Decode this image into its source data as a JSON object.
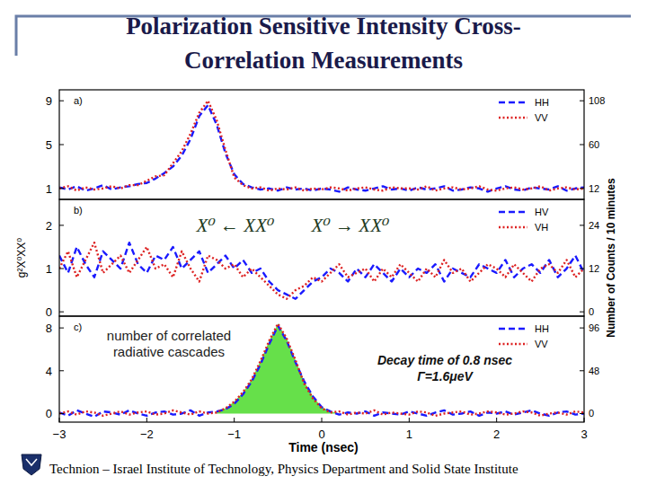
{
  "title_lines": [
    "Polarization Sensitive Intensity Cross-",
    "Correlation Measurements"
  ],
  "footer": "Technion – Israel Institute of Technology, Physics Department and Solid State Institute",
  "chart_data": [
    {
      "type": "line",
      "panel_label": "a)",
      "x": [
        -3,
        -2.9,
        -2.8,
        -2.7,
        -2.6,
        -2.5,
        -2.4,
        -2.3,
        -2.2,
        -2.1,
        -2,
        -1.9,
        -1.8,
        -1.7,
        -1.6,
        -1.5,
        -1.4,
        -1.3,
        -1.2,
        -1.1,
        -1,
        -0.9,
        -0.8,
        -0.7,
        -0.6,
        -0.5,
        -0.4,
        -0.3,
        -0.2,
        -0.1,
        0,
        0.1,
        0.2,
        0.3,
        0.4,
        0.5,
        0.6,
        0.7,
        0.8,
        0.9,
        1,
        1.1,
        1.2,
        1.3,
        1.4,
        1.5,
        1.6,
        1.7,
        1.8,
        1.9,
        2,
        2.1,
        2.2,
        2.3,
        2.4,
        2.5,
        2.6,
        2.7,
        2.8,
        2.9,
        3
      ],
      "xlim": [
        -3,
        3
      ],
      "ylim": [
        0,
        10
      ],
      "yticks": [
        1,
        5,
        9
      ],
      "y2lim": [
        0,
        120
      ],
      "y2ticks": [
        12,
        60,
        108
      ],
      "legend": "upper right",
      "series": [
        {
          "name": "HH",
          "color": "#1a1aff",
          "line_style": "dashed",
          "values": [
            1.1,
            0.9,
            1.2,
            0.8,
            1.0,
            1.3,
            0.9,
            1.1,
            1.2,
            1.4,
            1.5,
            1.9,
            2.4,
            3.0,
            4.0,
            5.5,
            7.6,
            8.6,
            6.8,
            4.2,
            2.3,
            1.4,
            1.1,
            0.9,
            1.0,
            0.8,
            1.1,
            0.9,
            1.0,
            0.8,
            1.0,
            0.9,
            0.7,
            1.1,
            0.9,
            0.8,
            1.0,
            1.2,
            0.9,
            1.0,
            0.8,
            1.1,
            0.9,
            1.0,
            1.2,
            0.8,
            0.9,
            1.1,
            1.0,
            0.7,
            1.0,
            1.2,
            0.9,
            0.8,
            1.1,
            1.0,
            0.9,
            1.2,
            0.8,
            1.0,
            1.1
          ]
        },
        {
          "name": "VV",
          "color": "#dd2222",
          "line_style": "dotted",
          "values": [
            1.0,
            1.2,
            0.8,
            1.1,
            0.9,
            1.0,
            1.2,
            1.0,
            1.3,
            1.3,
            1.7,
            2.1,
            2.2,
            3.3,
            4.4,
            6.0,
            7.9,
            9.0,
            7.2,
            4.5,
            2.0,
            1.3,
            1.0,
            1.1,
            0.8,
            1.0,
            0.9,
            1.1,
            0.8,
            1.0,
            0.9,
            1.1,
            1.0,
            0.8,
            1.0,
            1.1,
            0.9,
            0.8,
            1.1,
            1.0,
            1.0,
            0.9,
            1.2,
            0.8,
            1.0,
            1.1,
            0.9,
            1.0,
            1.2,
            0.9,
            0.8,
            1.0,
            1.1,
            0.9,
            1.0,
            1.2,
            0.8,
            1.0,
            1.1,
            0.9,
            1.0
          ]
        }
      ]
    },
    {
      "type": "line",
      "panel_label": "b)",
      "y_label": "g²X⁰XX⁰",
      "y2_label": "Number of Counts / 10 minutes",
      "annotations": [
        "X⁰ ← XX⁰",
        "X⁰ → XX⁰"
      ],
      "x": [
        -3,
        -2.9,
        -2.8,
        -2.7,
        -2.6,
        -2.5,
        -2.4,
        -2.3,
        -2.2,
        -2.1,
        -2,
        -1.9,
        -1.8,
        -1.7,
        -1.6,
        -1.5,
        -1.4,
        -1.3,
        -1.2,
        -1.1,
        -1,
        -0.9,
        -0.8,
        -0.7,
        -0.6,
        -0.5,
        -0.4,
        -0.3,
        -0.2,
        -0.1,
        0,
        0.1,
        0.2,
        0.3,
        0.4,
        0.5,
        0.6,
        0.7,
        0.8,
        0.9,
        1,
        1.1,
        1.2,
        1.3,
        1.4,
        1.5,
        1.6,
        1.7,
        1.8,
        1.9,
        2,
        2.1,
        2.2,
        2.3,
        2.4,
        2.5,
        2.6,
        2.7,
        2.8,
        2.9,
        3
      ],
      "xlim": [
        -3,
        3
      ],
      "ylim": [
        -0.1,
        2.6
      ],
      "yticks": [
        0,
        1,
        2
      ],
      "y2lim": [
        -1.2,
        31.2
      ],
      "y2ticks": [
        0,
        12,
        24
      ],
      "legend": "upper right",
      "series": [
        {
          "name": "HV",
          "color": "#1a1aff",
          "line_style": "dashed",
          "values": [
            1.3,
            0.9,
            1.5,
            1.1,
            0.8,
            1.4,
            1.2,
            1.0,
            1.6,
            1.1,
            0.9,
            1.3,
            1.2,
            1.5,
            1.0,
            1.2,
            1.4,
            0.9,
            1.1,
            1.3,
            1.0,
            1.2,
            0.9,
            1.0,
            0.7,
            0.5,
            0.4,
            0.3,
            0.5,
            0.7,
            0.8,
            1.0,
            0.9,
            0.7,
            1.0,
            0.8,
            1.1,
            0.9,
            0.7,
            1.0,
            0.8,
            1.0,
            0.9,
            1.1,
            0.7,
            1.0,
            0.9,
            0.8,
            1.1,
            1.0,
            0.9,
            1.2,
            0.8,
            1.0,
            1.1,
            0.9,
            1.2,
            0.8,
            1.0,
            1.3,
            0.9
          ]
        },
        {
          "name": "VH",
          "color": "#dd2222",
          "line_style": "dotted",
          "values": [
            1.0,
            1.4,
            0.8,
            1.2,
            1.6,
            0.9,
            1.1,
            1.3,
            0.9,
            1.2,
            1.5,
            1.0,
            1.1,
            0.8,
            1.4,
            1.0,
            0.7,
            1.3,
            1.2,
            1.0,
            1.1,
            0.8,
            1.0,
            0.8,
            0.6,
            0.4,
            0.3,
            0.5,
            0.6,
            0.8,
            0.7,
            0.9,
            1.1,
            0.8,
            0.9,
            1.0,
            0.7,
            1.0,
            0.8,
            1.1,
            0.9,
            0.7,
            1.0,
            0.8,
            1.2,
            0.9,
            1.0,
            0.7,
            0.9,
            1.1,
            1.0,
            0.8,
            1.1,
            0.9,
            0.7,
            1.0,
            1.1,
            0.9,
            1.2,
            0.8,
            1.0
          ]
        }
      ]
    },
    {
      "type": "line",
      "panel_label": "c)",
      "x_label": "Time (nsec)",
      "annotations": [
        "number of correlated",
        "radiative cascades",
        "Decay time of 0.8 nsec",
        "Γ=1.6μeV"
      ],
      "x": [
        -3,
        -2.9,
        -2.8,
        -2.7,
        -2.6,
        -2.5,
        -2.4,
        -2.3,
        -2.2,
        -2.1,
        -2,
        -1.9,
        -1.8,
        -1.7,
        -1.6,
        -1.5,
        -1.4,
        -1.3,
        -1.2,
        -1.1,
        -1,
        -0.9,
        -0.8,
        -0.7,
        -0.6,
        -0.5,
        -0.4,
        -0.3,
        -0.2,
        -0.1,
        0,
        0.1,
        0.2,
        0.3,
        0.4,
        0.5,
        0.6,
        0.7,
        0.8,
        0.9,
        1,
        1.1,
        1.2,
        1.3,
        1.4,
        1.5,
        1.6,
        1.7,
        1.8,
        1.9,
        2,
        2.1,
        2.2,
        2.3,
        2.4,
        2.5,
        2.6,
        2.7,
        2.8,
        2.9,
        3
      ],
      "xlim": [
        -3,
        3
      ],
      "xticks": [
        -3,
        -2,
        -1,
        0,
        1,
        2,
        3
      ],
      "ylim": [
        -0.8,
        9.1
      ],
      "yticks": [
        0,
        4,
        8
      ],
      "y2lim": [
        -9.6,
        109.2
      ],
      "y2ticks": [
        0,
        48,
        96
      ],
      "legend": "upper right",
      "series": [
        {
          "name": "HH",
          "color": "#1a1aff",
          "line_style": "dashed",
          "values": [
            0.1,
            -0.2,
            0.3,
            0.0,
            -0.3,
            0.2,
            0.1,
            -0.1,
            0.3,
            0.0,
            -0.2,
            0.1,
            0.2,
            -0.1,
            0.0,
            0.3,
            -0.2,
            0.1,
            0.2,
            0.4,
            0.9,
            1.8,
            3.0,
            4.6,
            6.5,
            8.2,
            6.8,
            4.8,
            3.0,
            1.6,
            0.6,
            0.2,
            -0.1,
            0.1,
            0.0,
            0.2,
            -0.2,
            0.1,
            0.0,
            -0.1,
            0.2,
            0.0,
            -0.2,
            0.1,
            0.3,
            -0.1,
            0.0,
            0.2,
            -0.2,
            0.1,
            0.0,
            0.2,
            -0.1,
            0.1,
            0.3,
            0.0,
            -0.2,
            0.1,
            0.2,
            -0.1,
            0.0
          ]
        },
        {
          "name": "VV",
          "color": "#dd2222",
          "line_style": "dotted",
          "values": [
            0.0,
            0.2,
            -0.1,
            0.2,
            0.1,
            -0.2,
            0.0,
            0.2,
            -0.1,
            0.1,
            0.2,
            -0.1,
            0.0,
            0.3,
            0.1,
            -0.1,
            0.2,
            0.0,
            0.1,
            0.5,
            1.1,
            2.0,
            3.2,
            4.9,
            6.8,
            8.4,
            7.0,
            5.0,
            2.8,
            1.4,
            0.5,
            0.1,
            0.2,
            -0.1,
            0.1,
            0.0,
            0.3,
            -0.1,
            0.1,
            0.0,
            -0.1,
            0.2,
            0.1,
            -0.2,
            0.0,
            0.1,
            0.2,
            -0.1,
            0.0,
            0.2,
            0.1,
            -0.1,
            0.0,
            0.2,
            0.1,
            -0.2,
            0.0,
            0.1,
            -0.1,
            0.2,
            0.1
          ]
        },
        {
          "type": "area",
          "color": "#66e04a",
          "values": [
            null,
            null,
            null,
            null,
            null,
            null,
            null,
            null,
            null,
            null,
            null,
            null,
            null,
            null,
            null,
            null,
            null,
            null,
            0.2,
            0.5,
            1.1,
            2.0,
            3.2,
            4.9,
            6.8,
            8.4,
            7.0,
            5.0,
            3.0,
            1.6,
            0.6,
            0.2,
            0.0,
            null,
            null,
            null,
            null,
            null,
            null,
            null,
            null,
            null,
            null,
            null,
            null,
            null,
            null,
            null,
            null,
            null,
            null,
            null,
            null,
            null,
            null,
            null,
            null,
            null,
            null,
            null,
            null
          ]
        }
      ]
    }
  ]
}
